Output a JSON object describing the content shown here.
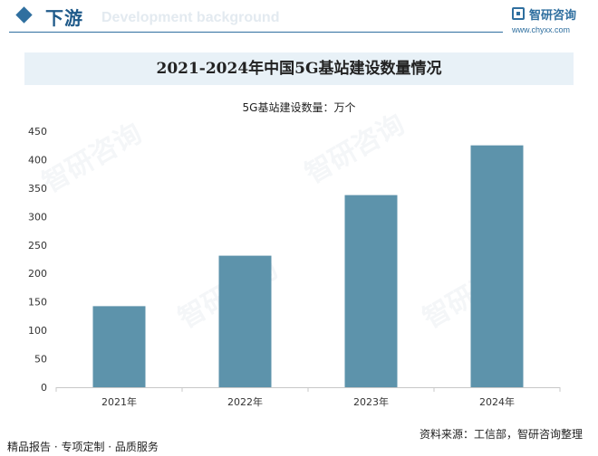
{
  "header": {
    "section_title": "下游",
    "section_subtitle": "Development background",
    "logo_name": "智研咨询",
    "logo_url": "www.chyxx.com"
  },
  "chart_data": {
    "type": "bar",
    "title": "2021-2024年中国5G基站建设数量情况",
    "unit_label": "5G基站建设数量：万个",
    "categories": [
      "2021年",
      "2022年",
      "2023年",
      "2024年"
    ],
    "values": [
      142.5,
      231.2,
      337.7,
      425.1
    ],
    "ylim": [
      0,
      450
    ],
    "yticks": [
      0,
      50,
      100,
      150,
      200,
      250,
      300,
      350,
      400,
      450
    ],
    "bar_color": "#5d93ab",
    "grid": false
  },
  "footer": {
    "left": "精品报告 · 专项定制 · 品质服务",
    "source": "资料来源：工信部，智研咨询整理"
  },
  "watermark": "智研咨询"
}
